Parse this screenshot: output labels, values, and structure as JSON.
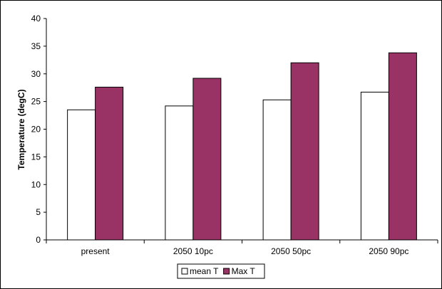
{
  "chart_data": {
    "type": "bar",
    "categories": [
      "present",
      "2050 10pc",
      "2050 50pc",
      "2050 90pc"
    ],
    "series": [
      {
        "name": "mean T",
        "values": [
          23.5,
          24.2,
          25.3,
          26.7
        ],
        "color": "#ffffff"
      },
      {
        "name": "Max T",
        "values": [
          27.6,
          29.2,
          32.0,
          33.8
        ],
        "color": "#993366"
      }
    ],
    "title": "",
    "xlabel": "",
    "ylabel": "Temperature (degC)",
    "ylim": [
      0,
      40
    ],
    "yticks": [
      0,
      5,
      10,
      15,
      20,
      25,
      30,
      35,
      40
    ],
    "grid": false,
    "legend": "bottom"
  }
}
